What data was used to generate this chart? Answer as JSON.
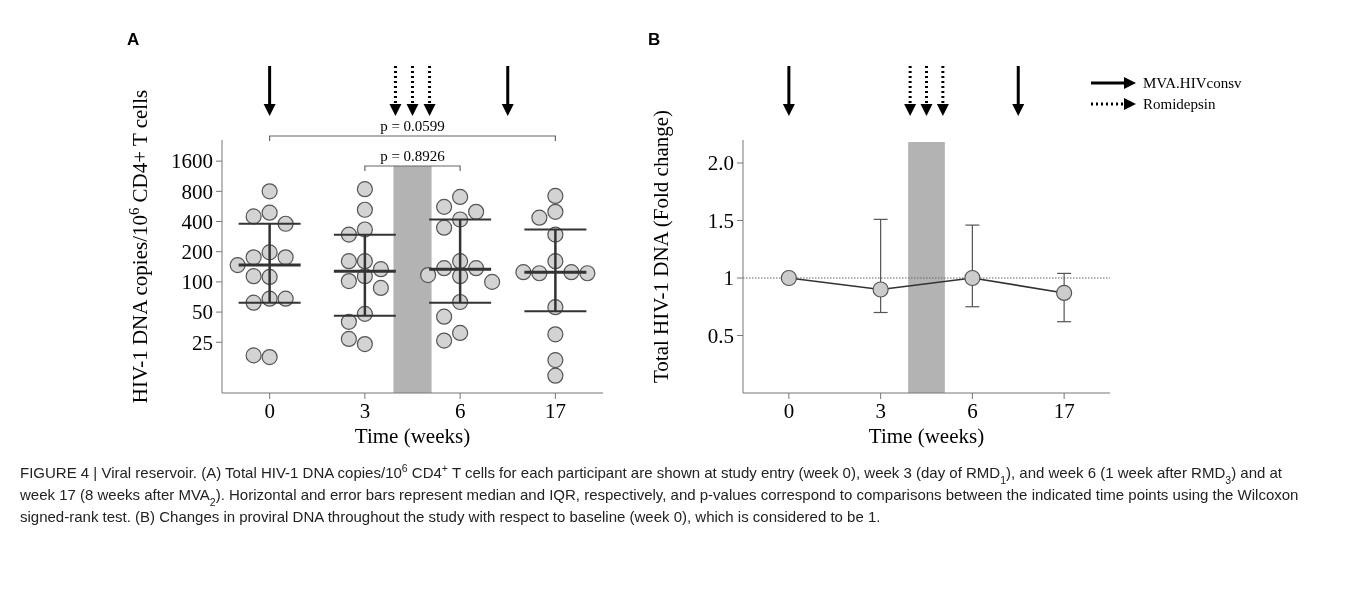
{
  "chart_data": [
    {
      "type": "scatter",
      "title": "A",
      "xlabel": "Time (weeks)",
      "ylabel": "HIV-1 DNA copies/10$^{6}$ CD4+ T cells",
      "categories": [
        "0",
        "3",
        "6",
        "17"
      ],
      "log": "y",
      "ylim": [
        7.8,
        2600
      ],
      "yticks": [
        25,
        50,
        100,
        200,
        400,
        800,
        1600
      ],
      "series": [
        {
          "type": "scatter",
          "marker": "circle",
          "color": "#d3d3d3",
          "x": [
            "0",
            "0",
            "0",
            "0",
            "0",
            "0",
            "0",
            "0",
            "0",
            "0",
            "0",
            "0",
            "0",
            "0",
            "0",
            "3",
            "3",
            "3",
            "3",
            "3",
            "3",
            "3",
            "3",
            "3",
            "3",
            "3",
            "3",
            "3",
            "3",
            "6",
            "6",
            "6",
            "6",
            "6",
            "6",
            "6",
            "6",
            "6",
            "6",
            "6",
            "6",
            "6",
            "6",
            "6",
            "17",
            "17",
            "17",
            "17",
            "17",
            "17",
            "17",
            "17",
            "17",
            "17",
            "17",
            "17",
            "17"
          ],
          "values": [
            800,
            490,
            450,
            380,
            197,
            176,
            176,
            147,
            112,
            114,
            68,
            62,
            68,
            17.8,
            18.5,
            840,
            524,
            333,
            296,
            161,
            161,
            114,
            134,
            102,
            87,
            48,
            40,
            24,
            27,
            704,
            560,
            500,
            419,
            347,
            161,
            137,
            137,
            117,
            114,
            100,
            63,
            45,
            31,
            26,
            720,
            500,
            437,
            296,
            161,
            122,
            125,
            125,
            122,
            56,
            30,
            16.6,
            11.6
          ]
        },
        {
          "type": "box",
          "color": "#333333",
          "boxes": [
            {
              "low": 62,
              "q1": 62,
              "median": 147,
              "q3": 380,
              "high": 380
            },
            {
              "low": 46,
              "q1": 46,
              "median": 128,
              "q3": 296,
              "high": 296
            },
            {
              "low": 62,
              "q1": 62,
              "median": 134,
              "q3": 419,
              "high": 419
            },
            {
              "low": 51,
              "q1": 51,
              "median": 125,
              "q3": 333,
              "high": 333
            }
          ]
        }
      ],
      "bands": [
        {
          "axis": "x",
          "from": "3",
          "to": "6",
          "color": "#b3b3b3"
        }
      ],
      "annotations": [
        "p = 0.0599",
        "p = 0.8926",
        "FIGURE 4 | Viral reservoir. (A) Total HIV-1 DNA copies/10$^{6}$ CD4$^{+}$ T cells for each participant are shown at study entry (week 0), week 3 (day of RMD$_{1}$), and week 6 (1 week after RMD$_{3}$) and at week 17 (8 weeks after MVA$_{2}$). Horizontal and error bars represent median and IQR, respectively, and p-values correspond to comparisons between the indicated time points using the Wilcoxon signed-rank test. (B) Changes in proviral DNA throughout the study with respect to baseline (week 0), which is considered to be 1."
      ]
    },
    {
      "type": "line",
      "title": "B",
      "xlabel": "Time (weeks)",
      "ylabel": "Total HIV-1 DNA (Fold change)",
      "categories": [
        "0",
        "3",
        "6",
        "17"
      ],
      "ylim": [
        0,
        2.2
      ],
      "yticks": [
        {
          "value": 0.5,
          "label": "0.5"
        },
        {
          "value": 1,
          "label": "1"
        },
        {
          "value": 1.5,
          "label": "1.5"
        },
        {
          "value": 2,
          "label": "2.0"
        }
      ],
      "marker": "circle",
      "series": [
        {
          "color": "#333333",
          "values": [
            1,
            0.9,
            1,
            0.87
          ],
          "errors": [
            null,
            [
              0.7,
              1.51
            ],
            [
              0.75,
              1.46
            ],
            [
              0.62,
              1.04
            ]
          ]
        }
      ],
      "ref_lines": [
        {
          "axis": "y",
          "value": 1,
          "color": "#666666",
          "line_style": "dotted"
        }
      ],
      "bands": [
        {
          "axis": "x",
          "from": "3",
          "to": "6",
          "color": "#b3b3b3"
        }
      ],
      "annotations": [
        "MVA.HIVconsv",
        "Romidepsin"
      ]
    }
  ]
}
